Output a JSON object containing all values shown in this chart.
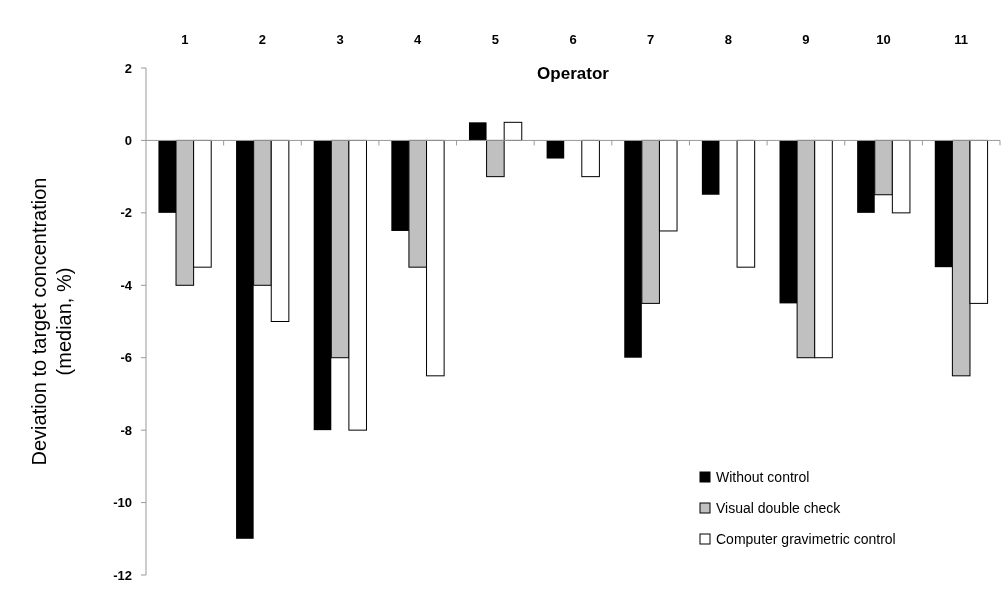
{
  "chart_data": {
    "type": "bar",
    "xlabel": "Operator",
    "ylabel": "Deviation to target concentration (median, %)",
    "categories": [
      "1",
      "2",
      "3",
      "4",
      "5",
      "6",
      "7",
      "8",
      "9",
      "10",
      "11"
    ],
    "series": [
      {
        "name": "Without control",
        "color": "#000000",
        "values": [
          -2,
          -11,
          -8,
          -2.5,
          0.5,
          -0.5,
          -6,
          -1.5,
          -4.5,
          -2,
          -3.5
        ]
      },
      {
        "name": "Visual double check",
        "color": "#c0c0c0",
        "values": [
          -4,
          -4,
          -6,
          -3.5,
          -1,
          0,
          -4.5,
          0,
          -6,
          -1.5,
          -6.5
        ]
      },
      {
        "name": "Computer gravimetric control",
        "color": "#ffffff",
        "values": [
          -3.5,
          -5,
          -8,
          -6.5,
          0.5,
          -1,
          -2.5,
          -3.5,
          -6,
          -2,
          -4.5
        ]
      }
    ],
    "ylim": [
      -12,
      2
    ],
    "yticks": [
      -12,
      -10,
      -8,
      -6,
      -4,
      -2,
      0,
      2
    ],
    "legend": "bottom right"
  }
}
